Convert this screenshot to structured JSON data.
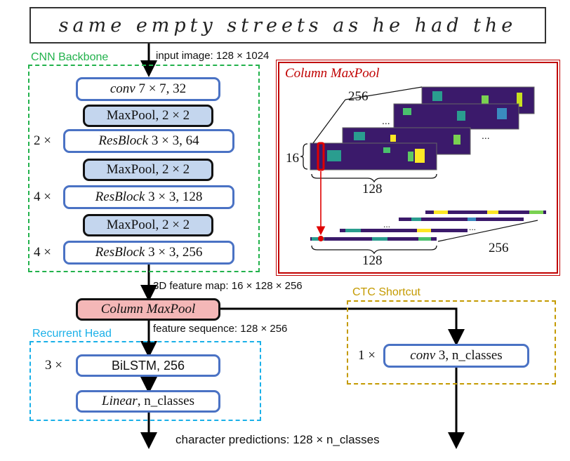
{
  "input_strip": {
    "text": "same empty streets as he had the"
  },
  "labels": {
    "input_image": "input image: 128 × 1024",
    "feature_map": "3D feature map: 16 × 128 × 256",
    "feature_sequence": "feature sequence: 128 × 256",
    "predictions": "character predictions: 128 × n_classes"
  },
  "cnn_backbone": {
    "title": "CNN Backbone",
    "blocks": [
      {
        "mult": "",
        "italic": "conv",
        "rest": " 7 × 7, 32"
      },
      {
        "mult": "",
        "italic": "",
        "rest": "MaxPool, 2 × 2"
      },
      {
        "mult": "2 ×",
        "italic": "ResBlock",
        "rest": " 3 × 3, 64"
      },
      {
        "mult": "",
        "italic": "",
        "rest": "MaxPool, 2 × 2"
      },
      {
        "mult": "4 ×",
        "italic": "ResBlock",
        "rest": " 3 × 3, 128"
      },
      {
        "mult": "",
        "italic": "",
        "rest": "MaxPool, 2 × 2"
      },
      {
        "mult": "4 ×",
        "italic": "ResBlock",
        "rest": " 3 × 3, 256"
      }
    ]
  },
  "column_maxpool_inset": {
    "title": "Column MaxPool",
    "label_256_top": "256",
    "label_16": "16",
    "label_128_top": "128",
    "label_128_bottom": "128",
    "label_256_bottom": "256",
    "ellipsis": "..."
  },
  "column_maxpool_node": {
    "italic": "Column MaxPool",
    "rest": ""
  },
  "recurrent_head": {
    "title": "Recurrent Head",
    "blocks": [
      {
        "mult": "3 ×",
        "italic": "",
        "rest": "BiLSTM, 256"
      },
      {
        "mult": "",
        "italic": "Linear",
        "rest": ", n_classes"
      }
    ]
  },
  "ctc_shortcut": {
    "title": "CTC Shortcut",
    "block": {
      "mult": "1 ×",
      "italic": "conv",
      "rest": " 3, n_classes"
    }
  },
  "colors": {
    "backbone_border": "#22b24c",
    "recurrent_border": "#1ab0e8",
    "ctc_border": "#c49a00",
    "inset_border": "#c00000",
    "block_border": "#4a72c4",
    "maxpool_fill": "#c4d6ee",
    "column_maxpool_fill": "#f4b7b7",
    "arrow": "#000000"
  }
}
